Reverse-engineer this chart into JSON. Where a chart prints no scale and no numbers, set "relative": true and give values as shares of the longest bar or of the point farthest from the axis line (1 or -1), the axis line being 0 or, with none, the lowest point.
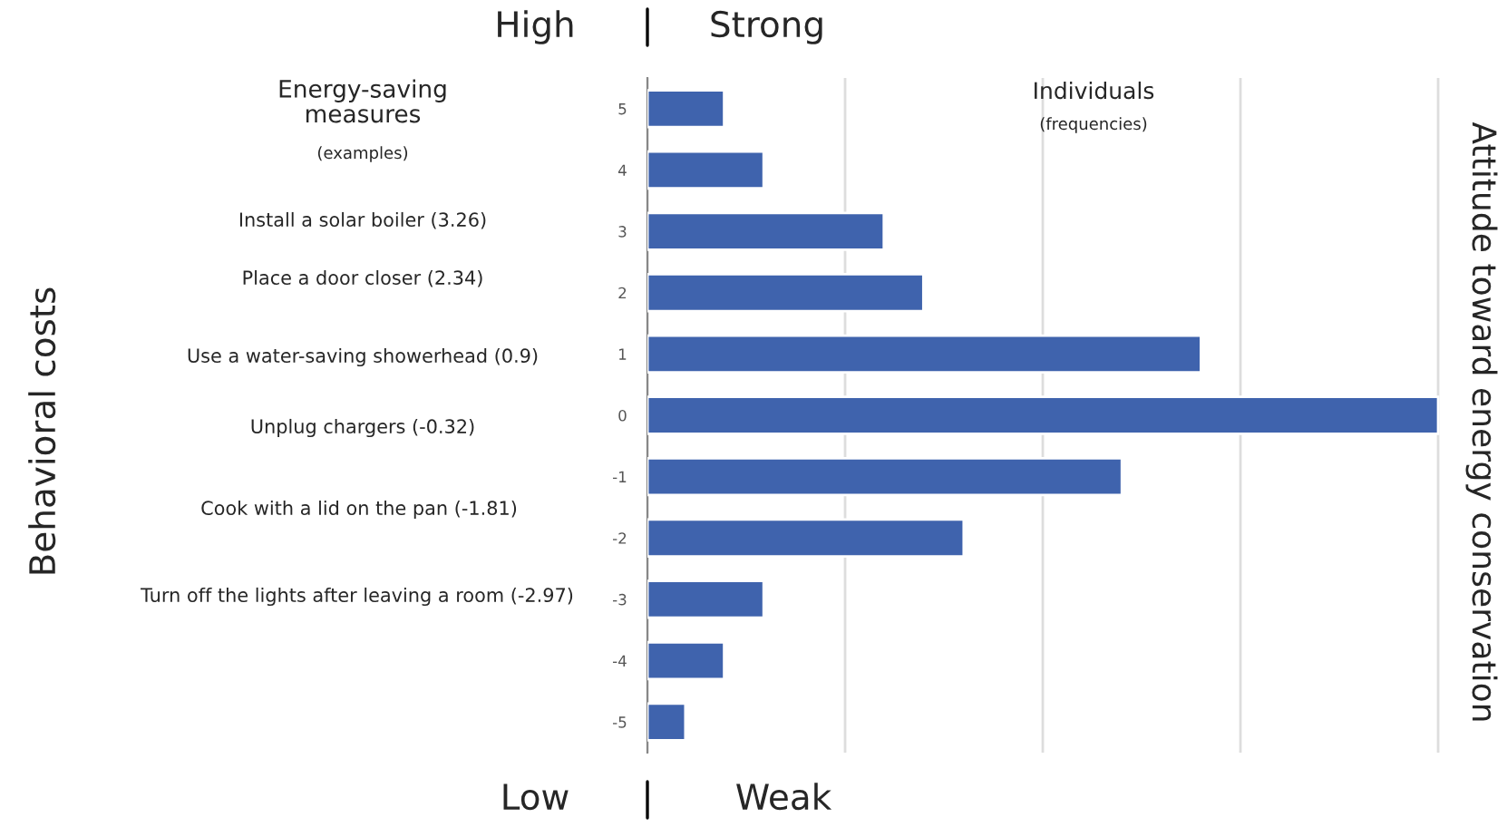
{
  "chart_data": {
    "type": "bar",
    "orientation": "horizontal",
    "relative": true,
    "grid": "x",
    "y2label": "Attitude toward energy conservation",
    "categories": [
      "5",
      "4",
      "3",
      "2",
      "1",
      "0",
      "-1",
      "-2",
      "-3",
      "-4",
      "-5"
    ],
    "series": [
      {
        "color": "#3f63ad",
        "values": [
          0.097,
          0.147,
          0.299,
          0.349,
          0.7,
          1,
          0.6,
          0.4,
          0.147,
          0.097,
          0.048
        ]
      }
    ],
    "annotations": [
      "High",
      "Strong",
      "Low",
      "Weak",
      "Energy-saving measures",
      "(examples)",
      "Individuals",
      "(frequencies)",
      "Install a solar boiler (3.26)",
      "Place a door closer (2.34)",
      "Use a water-saving showerhead (0.9)",
      "Unplug chargers (-0.32)",
      "Cook with a lid on the pan (-1.81)",
      "Turn off the lights after leaving a room (-2.97)",
      "Behavioral costs"
    ]
  }
}
